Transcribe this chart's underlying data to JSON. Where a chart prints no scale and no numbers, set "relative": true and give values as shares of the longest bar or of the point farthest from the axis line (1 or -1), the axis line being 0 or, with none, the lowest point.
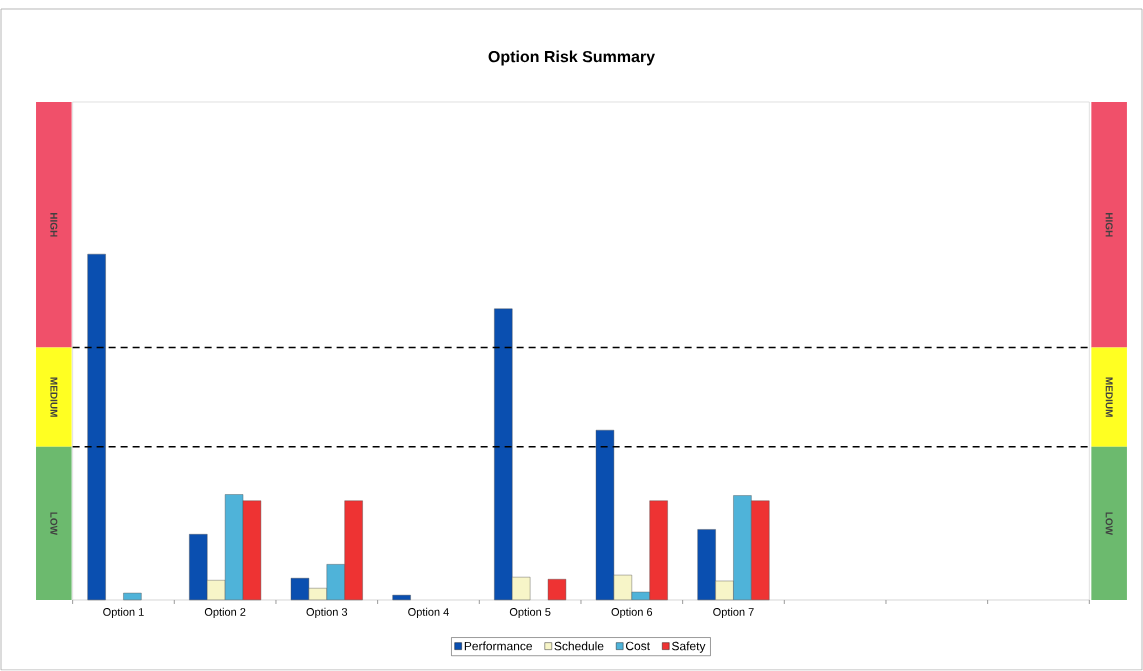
{
  "chart_data": {
    "type": "bar",
    "title": "Option Risk Summary",
    "relative": true,
    "legend": "bottom",
    "categories": [
      "Option 1",
      "Option 2",
      "Option 3",
      "Option 4",
      "Option 5",
      "Option 6",
      "Option 7",
      null,
      null,
      null
    ],
    "series": [
      {
        "name": "Performance",
        "color": "#0a4fb0",
        "values": [
          1.0,
          0.19,
          0.063,
          0.014,
          0.842,
          0.491,
          0.204,
          null,
          null,
          null
        ]
      },
      {
        "name": "Schedule",
        "color": "#f7f5c8",
        "values": [
          null,
          0.057,
          0.034,
          null,
          0.066,
          0.072,
          0.055,
          null,
          null,
          null
        ]
      },
      {
        "name": "Cost",
        "color": "#4fb3d9",
        "values": [
          0.02,
          0.305,
          0.103,
          null,
          null,
          0.023,
          0.302,
          null,
          null,
          null
        ]
      },
      {
        "name": "Safety",
        "color": "#ee3333",
        "values": [
          null,
          0.287,
          0.287,
          null,
          0.06,
          0.287,
          0.287,
          null,
          null,
          null
        ]
      }
    ],
    "ref_lines": [
      {
        "axis": "y",
        "value": 0.73,
        "color": "#000000",
        "line_style": "dashed"
      },
      {
        "axis": "y",
        "value": 0.443,
        "color": "#000000",
        "line_style": "dashed"
      }
    ],
    "annotations": [
      "HIGH",
      "MEDIUM",
      "LOW"
    ]
  }
}
